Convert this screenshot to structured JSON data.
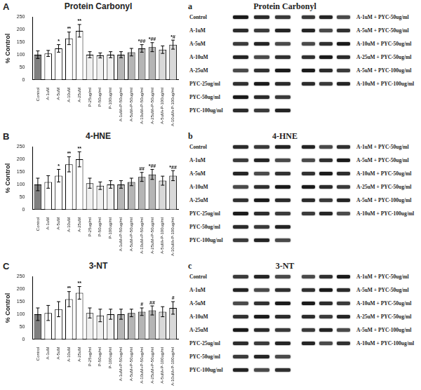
{
  "chart_data": [
    {
      "type": "bar",
      "panel_label": "A",
      "title": "Protein Carbonyl",
      "y_label": "% Control",
      "categories": [
        "Control",
        "A-1uM",
        "A-5uM",
        "A-10uM",
        "A-25uM",
        "P-25ug/ml",
        "P-50ug/ml",
        "P-100ug/ml",
        "A-1uM+P-50ug/ml",
        "A-5uM+P-50ug/ml",
        "A-10uM+P-50ug/ml",
        "A-25uM+P-50ug/ml",
        "A-5uM+P-100ug/ml",
        "A-10uM+P-100ug/ml"
      ],
      "values": [
        100,
        105,
        125,
        165,
        195,
        100,
        97,
        100,
        100,
        110,
        125,
        130,
        120,
        140
      ],
      "errors": [
        15,
        12,
        15,
        25,
        25,
        12,
        10,
        12,
        12,
        15,
        15,
        18,
        15,
        18
      ],
      "colors": [
        "#7f7f7f",
        "#ffffff",
        "#ffffff",
        "#ffffff",
        "#ffffff",
        "#f0f0f0",
        "#f0f0f0",
        "#f0f0f0",
        "#b5b5b5",
        "#b5b5b5",
        "#b5b5b5",
        "#b5b5b5",
        "#d9d9d9",
        "#d9d9d9"
      ],
      "ylim": [
        0,
        250
      ],
      "yticks": [
        0,
        50,
        100,
        150,
        200,
        250
      ],
      "grid": false,
      "annotations": [
        {
          "category": "A-5uM",
          "text": "*"
        },
        {
          "category": "A-10uM",
          "text": "**"
        },
        {
          "category": "A-25uM",
          "text": "**"
        },
        {
          "category": "A-10uM+P-50ug/ml",
          "text": "*##"
        },
        {
          "category": "A-25uM+P-50ug/ml",
          "text": "*##"
        },
        {
          "category": "A-10uM+P-100ug/ml",
          "text": "*#"
        }
      ]
    },
    {
      "type": "bar",
      "panel_label": "B",
      "title": "4-HNE",
      "y_label": "% Control",
      "categories": [
        "Control",
        "A-1uM",
        "A-5uM",
        "A-10uM",
        "A-25uM",
        "P-25ug/ml",
        "P-50ug/ml",
        "P-100ug/ml",
        "A-1uM+P-50ug/ml",
        "A-5uM+P-50ug/ml",
        "A-10uM+P-50ug/ml",
        "A-25uM+P-50ug/ml",
        "A-5uM+P-100ug/ml",
        "A-10uM+P-100ug/ml"
      ],
      "values": [
        100,
        110,
        135,
        180,
        200,
        105,
        95,
        100,
        100,
        110,
        130,
        140,
        115,
        135
      ],
      "errors": [
        25,
        25,
        25,
        30,
        30,
        20,
        15,
        15,
        15,
        15,
        18,
        20,
        18,
        20
      ],
      "colors": [
        "#7f7f7f",
        "#ffffff",
        "#ffffff",
        "#ffffff",
        "#ffffff",
        "#f0f0f0",
        "#f0f0f0",
        "#f0f0f0",
        "#b5b5b5",
        "#b5b5b5",
        "#b5b5b5",
        "#b5b5b5",
        "#d9d9d9",
        "#d9d9d9"
      ],
      "ylim": [
        0,
        250
      ],
      "yticks": [
        0,
        50,
        100,
        150,
        200,
        250
      ],
      "grid": false,
      "annotations": [
        {
          "category": "A-5uM",
          "text": "*"
        },
        {
          "category": "A-10uM",
          "text": "**"
        },
        {
          "category": "A-25uM",
          "text": "**"
        },
        {
          "category": "A-10uM+P-50ug/ml",
          "text": "##"
        },
        {
          "category": "A-25uM+P-50ug/ml",
          "text": "*##"
        },
        {
          "category": "A-10uM+P-100ug/ml",
          "text": "*##"
        }
      ]
    },
    {
      "type": "bar",
      "panel_label": "C",
      "title": "3-NT",
      "y_label": "% Control",
      "categories": [
        "Control",
        "A-1uM",
        "A-5uM",
        "A-10uM",
        "A-25uM",
        "P-25ug/ml",
        "P-50ug/ml",
        "P-100ug/ml",
        "A-1uM+P-50ug/ml",
        "A-5uM+P-50ug/ml",
        "A-10uM+P-50ug/ml",
        "A-25uM+P-50ug/ml",
        "A-5uM+P-100ug/ml",
        "A-10uM+P-100ug/ml"
      ],
      "values": [
        100,
        105,
        120,
        160,
        185,
        105,
        95,
        100,
        100,
        105,
        110,
        115,
        110,
        125
      ],
      "errors": [
        25,
        30,
        30,
        30,
        25,
        20,
        25,
        20,
        20,
        15,
        15,
        18,
        20,
        25
      ],
      "colors": [
        "#7f7f7f",
        "#ffffff",
        "#ffffff",
        "#ffffff",
        "#ffffff",
        "#f0f0f0",
        "#f0f0f0",
        "#f0f0f0",
        "#b5b5b5",
        "#b5b5b5",
        "#b5b5b5",
        "#b5b5b5",
        "#d9d9d9",
        "#d9d9d9"
      ],
      "ylim": [
        0,
        250
      ],
      "yticks": [
        0,
        50,
        100,
        150,
        200,
        250
      ],
      "grid": false,
      "annotations": [
        {
          "category": "A-10uM",
          "text": "**"
        },
        {
          "category": "A-25uM",
          "text": "**"
        },
        {
          "category": "A-10uM+P-50ug/ml",
          "text": "#"
        },
        {
          "category": "A-25uM+P-50ug/ml",
          "text": "##"
        },
        {
          "category": "A-10uM+P-100ug/ml",
          "text": "#"
        }
      ]
    }
  ],
  "blots": [
    {
      "panel_label": "a",
      "title": "Protein Carbonyl",
      "left_rows": [
        "Control",
        "A-1uM",
        "A-5uM",
        "A-10uM",
        "A-25uM",
        "PYC-25ug/ml",
        "PYC-50ug/ml",
        "PYC-100ug/ml"
      ],
      "right_rows": [
        "A-1uM + PYC-50ug/ml",
        "A-5uM + PYC-50ug/ml",
        "A-10uM + PYC-50ug/ml",
        "A-25uM + PYC-50ug/ml",
        "A-5uM + PYC-100ug/ml",
        "A-10uM + PYC-100ug/ml"
      ]
    },
    {
      "panel_label": "b",
      "title": "4-HNE",
      "left_rows": [
        "Control",
        "A-1uM",
        "A-5uM",
        "A-10uM",
        "A-25uM",
        "PYC-25ug/ml",
        "PYC-50ug/ml",
        "PYC-100ug/ml"
      ],
      "right_rows": [
        "A-1uM + PYC-50ug/ml",
        "A-5uM + PYC-50ug/ml",
        "A-10uM + PYC-50ug/ml",
        "A-25uM + PYC-50ug/ml",
        "A-5uM + PYC-100ug/ml",
        "A-10uM + PYC-100ug/ml"
      ]
    },
    {
      "panel_label": "c",
      "title": "3-NT",
      "left_rows": [
        "Control",
        "A-1uM",
        "A-5uM",
        "A-10uM",
        "A-25uM",
        "PYC-25ug/ml",
        "PYC-50ug/ml",
        "PYC-100ug/ml"
      ],
      "right_rows": [
        "A-1uM + PYC-50ug/ml",
        "A-5uM + PYC-50ug/ml",
        "A-10uM + PYC-50ug/ml",
        "A-25uM + PYC-50ug/ml",
        "A-5uM + PYC-100ug/ml",
        "A-10uM + PYC-100ug/ml"
      ]
    }
  ]
}
